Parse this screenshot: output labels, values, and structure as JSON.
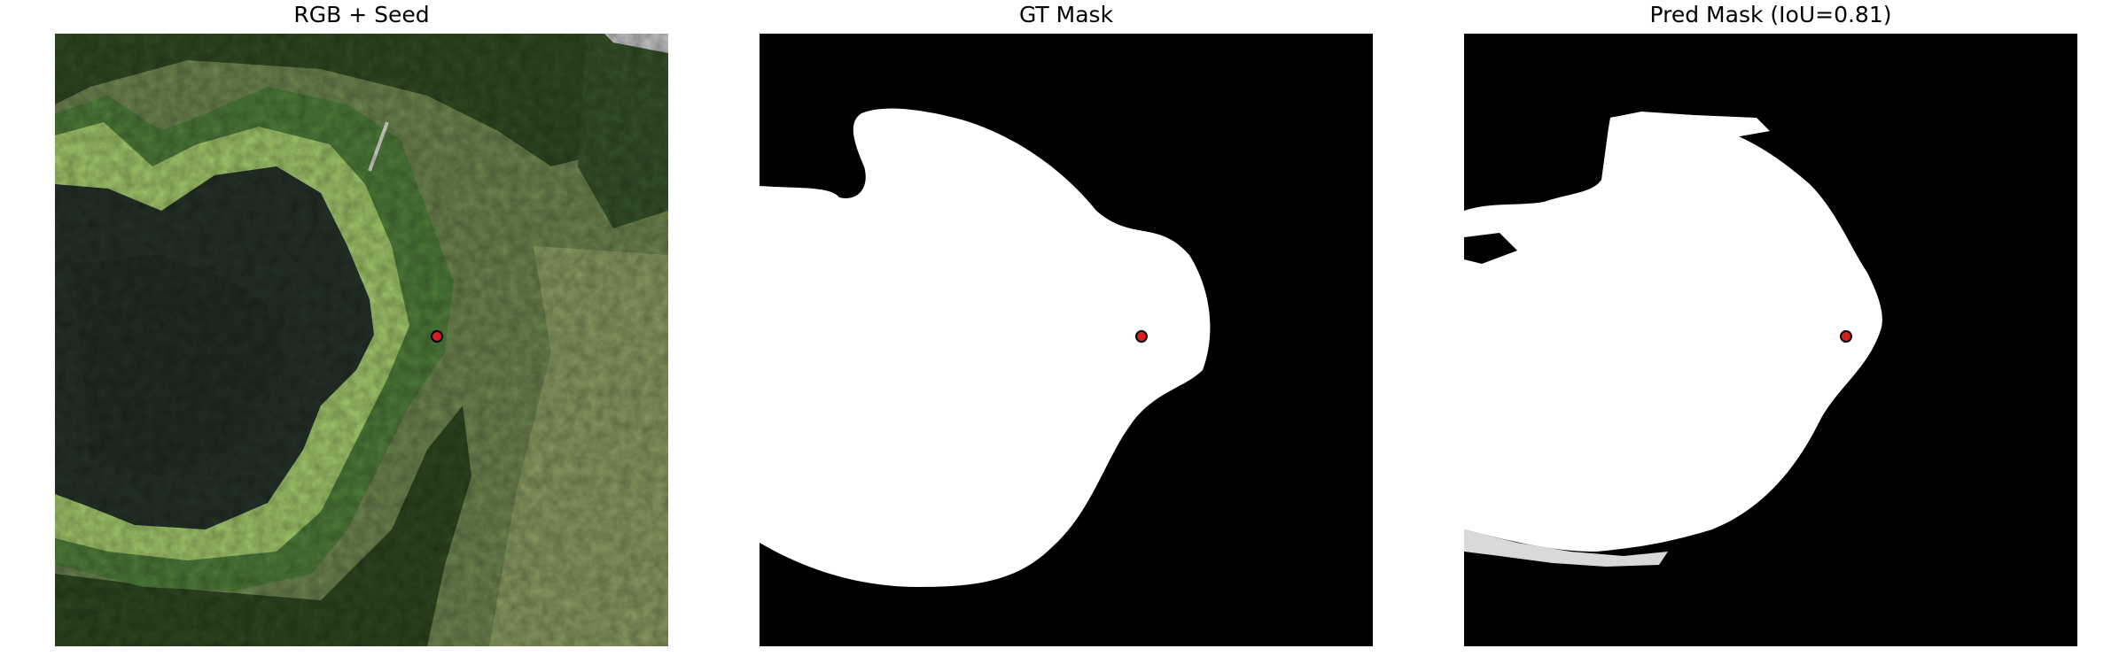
{
  "figure": {
    "panels": [
      {
        "title": "RGB + Seed",
        "kind": "aerial-image"
      },
      {
        "title": "GT Mask",
        "kind": "binary-mask"
      },
      {
        "title": "Pred Mask (IoU=0.81)",
        "kind": "binary-mask"
      }
    ],
    "seed_marker": {
      "color": "#d62020",
      "edge_color": "#000000"
    },
    "mask_colors": {
      "foreground": "#ffffff",
      "background": "#000000"
    },
    "image_palette": {
      "water": "#243228",
      "algae": "#a8cc70",
      "marsh": "#4f7d3a",
      "trees": "#2f4a22",
      "field": "#7f9257",
      "road": "#c8c8c8"
    }
  }
}
